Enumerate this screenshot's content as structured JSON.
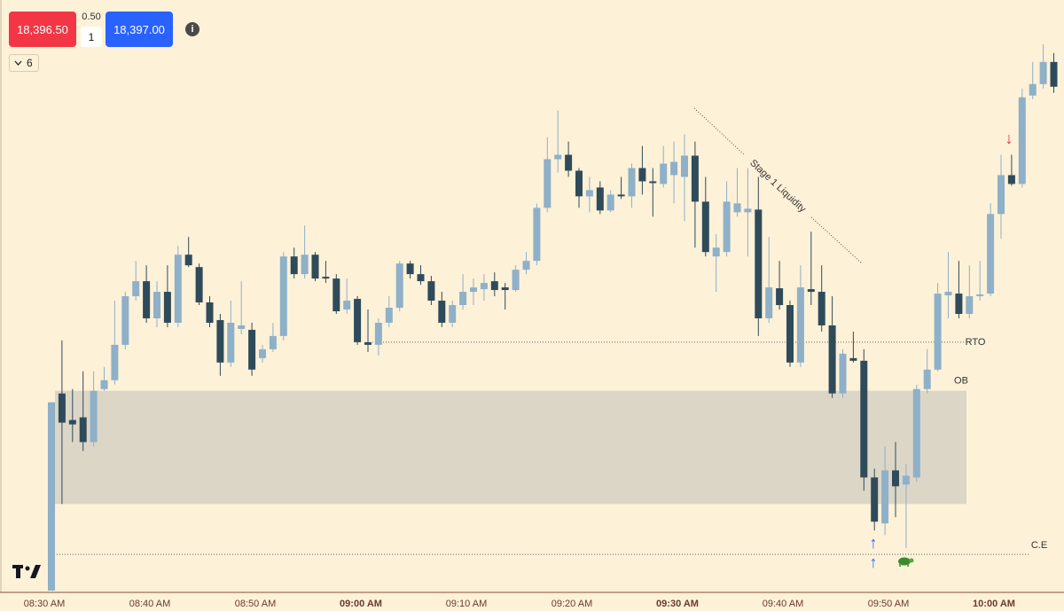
{
  "order_panel": {
    "sell_price": "18,396.50",
    "spread": "0.50",
    "quantity": "1",
    "buy_price": "18,397.00",
    "indicator_count": "6"
  },
  "chart_data": {
    "type": "candlestick",
    "categories": [
      "08:30 AM",
      null,
      null,
      null,
      null,
      null,
      null,
      null,
      null,
      null,
      "08:40 AM",
      null,
      null,
      null,
      null,
      null,
      null,
      null,
      null,
      null,
      "08:50 AM",
      null,
      null,
      null,
      null,
      null,
      null,
      null,
      null,
      null,
      "09:00 AM",
      null,
      null,
      null,
      null,
      null,
      null,
      null,
      null,
      null,
      "09:10 AM",
      null,
      null,
      null,
      null,
      null,
      null,
      null,
      null,
      null,
      "09:20 AM",
      null,
      null,
      null,
      null,
      null,
      null,
      null,
      null,
      null,
      "09:30 AM",
      null,
      null,
      null,
      null,
      null,
      null,
      null,
      null,
      null,
      "09:40 AM",
      null,
      null,
      null,
      null,
      null,
      null,
      null,
      null,
      null,
      "09:50 AM",
      null,
      null,
      null,
      null,
      null,
      null,
      null,
      null,
      null,
      "10:00 AM",
      null,
      null,
      null,
      null,
      null
    ],
    "open": [
      18254.5,
      18310.25,
      18302.75,
      18303.5,
      18296.5,
      18311.5,
      18314,
      18324,
      18337.75,
      18342,
      18331.5,
      18339,
      18330.25,
      18349.5,
      18346,
      18336,
      18331,
      18319,
      18328.5,
      18328.25,
      18320.25,
      18322.75,
      18326.5,
      18349,
      18344,
      18349.5,
      18343.25,
      18342.75,
      18334,
      18337,
      18324.75,
      18324,
      18330.25,
      18334.5,
      18347,
      18344,
      18342,
      18336.5,
      18330.25,
      18335.25,
      18339,
      18339.75,
      18342,
      18340.25,
      18339.5,
      18345.25,
      18347.75,
      18362.75,
      18376.5,
      18377.75,
      18373.25,
      18366,
      18368.5,
      18362,
      18366.5,
      18366,
      18374,
      18370.25,
      18369.5,
      18372,
      18371.5,
      18377.5,
      18364.5,
      18349,
      18350.25,
      18361.5,
      18361.5,
      18362.25,
      18331.5,
      18340,
      18335.25,
      18319,
      18339.75,
      18339,
      18329.5,
      18310.25,
      18320.25,
      18319.5,
      18286.5,
      18273.5,
      18288.5,
      18284.5,
      18286.5,
      18311.5,
      18317,
      18338,
      18338.5,
      18332.75,
      18337.75,
      18338.5,
      18361,
      18372,
      18369.5,
      18394.5,
      18397.75,
      18404
    ],
    "high": [
      18307.75,
      18325.25,
      18311.5,
      18316.5,
      18316.5,
      18317.75,
      18336.5,
      18339,
      18347.75,
      18346.5,
      18342,
      18346.5,
      18352,
      18354.5,
      18347,
      18337.75,
      18332.75,
      18336.5,
      18342,
      18330.25,
      18324,
      18330.25,
      18350.25,
      18351.5,
      18357.75,
      18350.25,
      18347.75,
      18344,
      18342.75,
      18337.75,
      18334,
      18331.5,
      18337.75,
      18347.75,
      18347.75,
      18346.5,
      18343.5,
      18339,
      18336.5,
      18344,
      18342.75,
      18344,
      18344.5,
      18341.5,
      18346.5,
      18350.25,
      18364,
      18382.75,
      18390.25,
      18381.5,
      18374,
      18371.5,
      18370.25,
      18367.75,
      18371.5,
      18375.25,
      18380.25,
      18374,
      18380.25,
      18381.5,
      18383.5,
      18381.5,
      18371.5,
      18355.25,
      18370.25,
      18374,
      18374,
      18371.5,
      18354.5,
      18347.75,
      18336.5,
      18346.5,
      18356,
      18346.5,
      18337.75,
      18322.75,
      18327.75,
      18322.75,
      18289,
      18295.25,
      18296.5,
      18290.25,
      18312.75,
      18322.75,
      18341.5,
      18350.25,
      18347.75,
      18346.5,
      18347.75,
      18364,
      18377.75,
      18377.75,
      18396.5,
      18404,
      18409,
      18406.5
    ],
    "low": [
      18254.5,
      18279,
      18296.5,
      18294,
      18295.25,
      18311,
      18312.75,
      18322.75,
      18336.5,
      18330.25,
      18329,
      18329,
      18329,
      18346,
      18335.25,
      18329,
      18315.25,
      18317.75,
      18327,
      18315.25,
      18319,
      18322,
      18325.25,
      18342.75,
      18342.75,
      18342,
      18341.5,
      18332.75,
      18332.75,
      18324,
      18322,
      18321,
      18329,
      18333.5,
      18342.75,
      18341,
      18335.25,
      18329,
      18329,
      18334,
      18335.25,
      18336.5,
      18337.75,
      18334,
      18339,
      18344,
      18346.5,
      18361.5,
      18372.75,
      18371.5,
      18362.75,
      18361.5,
      18361,
      18361.5,
      18365.25,
      18362.75,
      18366.5,
      18360.25,
      18368.5,
      18364,
      18359,
      18351.5,
      18349,
      18339,
      18349,
      18360.25,
      18349,
      18326.5,
      18330.25,
      18334,
      18317.75,
      18317.75,
      18335.25,
      18327.75,
      18309,
      18309,
      18319,
      18282.75,
      18271.5,
      18270.25,
      18275.25,
      18266.5,
      18285.25,
      18310.25,
      18316.5,
      18331.5,
      18331.5,
      18331.5,
      18336.5,
      18337.75,
      18354,
      18369,
      18368.5,
      18393.5,
      18396.5,
      18395.25
    ],
    "close": [
      18307.75,
      18302,
      18301.5,
      18296.5,
      18311,
      18314,
      18324,
      18337.75,
      18342,
      18331.5,
      18339,
      18330.25,
      18349.5,
      18346.5,
      18336,
      18330.25,
      18319,
      18330.25,
      18329.5,
      18317,
      18322.75,
      18326.5,
      18349,
      18344,
      18349.5,
      18342.75,
      18342.75,
      18333.5,
      18336.5,
      18324.75,
      18324,
      18330.25,
      18334.5,
      18347,
      18344,
      18342,
      18336.5,
      18330.25,
      18335.25,
      18339,
      18340.25,
      18341.5,
      18339.5,
      18339.5,
      18345.25,
      18347.75,
      18362.75,
      18376.5,
      18377.75,
      18373.25,
      18366,
      18367.75,
      18362,
      18366.5,
      18366,
      18374,
      18370.25,
      18369.75,
      18375.25,
      18375.75,
      18377.5,
      18364.5,
      18350.25,
      18351.5,
      18364.5,
      18364,
      18362.5,
      18331.5,
      18340.25,
      18335.25,
      18319,
      18340.25,
      18339,
      18329.5,
      18310.25,
      18321.5,
      18319.5,
      18286.5,
      18274,
      18288.5,
      18284,
      18287,
      18311.5,
      18317,
      18338.5,
      18339,
      18332.75,
      18337.75,
      18338.25,
      18361,
      18372,
      18369.5,
      18394,
      18397.75,
      18404,
      18397
    ],
    "up_color": "#8eb0c8",
    "down_color": "#2f4b5a",
    "ylim": [
      18254,
      18414
    ],
    "zones": [
      {
        "label": "OB",
        "low": 18279,
        "high": 18311
      }
    ],
    "levels": [
      {
        "label": "RTO",
        "value": 18324.75
      },
      {
        "label": "C.E",
        "value": 18264.75
      }
    ],
    "annotation": "Stage 1 Liquidity"
  }
}
